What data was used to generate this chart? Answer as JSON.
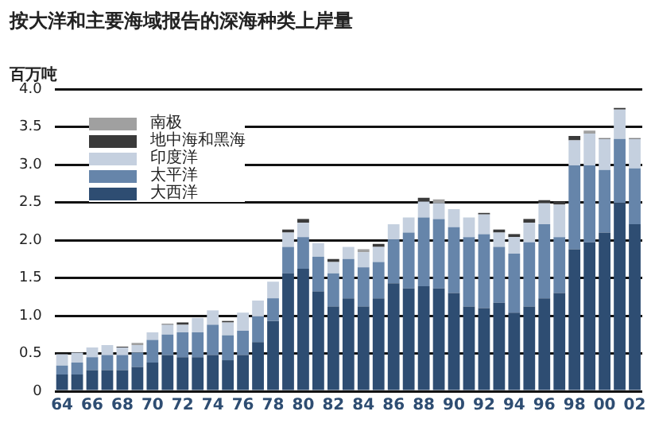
{
  "chart_data": {
    "type": "bar",
    "title": "按大洋和主要海域报告的深海种类上岸量",
    "ylabel": "百万吨",
    "categories": [
      "64",
      null,
      "66",
      null,
      "68",
      null,
      "70",
      null,
      "72",
      null,
      "74",
      null,
      "76",
      null,
      "78",
      null,
      "80",
      null,
      "82",
      null,
      "84",
      null,
      "86",
      null,
      "88",
      null,
      "90",
      null,
      "92",
      null,
      "94",
      null,
      "96",
      null,
      "98",
      null,
      "00",
      null,
      "02"
    ],
    "stacked": true,
    "series": [
      {
        "name": "大西洋",
        "color": "#2e4d72",
        "values": [
          0.22,
          0.22,
          0.28,
          0.28,
          0.28,
          0.32,
          0.38,
          0.48,
          0.45,
          0.45,
          0.48,
          0.41,
          0.48,
          0.65,
          0.93,
          1.56,
          1.62,
          1.32,
          1.12,
          1.23,
          1.12,
          1.23,
          1.43,
          1.36,
          1.39,
          1.36,
          1.3,
          1.12,
          1.1,
          1.17,
          1.04,
          1.12,
          1.23,
          1.3,
          1.88,
          1.97,
          2.1,
          2.49,
          2.21
        ]
      },
      {
        "name": "太平洋",
        "color": "#6685aa",
        "values": [
          0.12,
          0.16,
          0.17,
          0.2,
          0.2,
          0.19,
          0.3,
          0.27,
          0.33,
          0.33,
          0.4,
          0.33,
          0.32,
          0.34,
          0.3,
          0.35,
          0.42,
          0.46,
          0.44,
          0.52,
          0.52,
          0.48,
          0.58,
          0.74,
          0.91,
          0.92,
          0.87,
          0.92,
          0.98,
          0.74,
          0.78,
          0.85,
          0.98,
          0.74,
          1.11,
          1.02,
          0.83,
          0.85,
          0.74
        ]
      },
      {
        "name": "印度洋",
        "color": "#c5d0df",
        "values": [
          0.15,
          0.13,
          0.13,
          0.13,
          0.1,
          0.1,
          0.1,
          0.13,
          0.1,
          0.19,
          0.19,
          0.17,
          0.24,
          0.21,
          0.22,
          0.19,
          0.19,
          0.18,
          0.15,
          0.16,
          0.2,
          0.2,
          0.2,
          0.2,
          0.21,
          0.21,
          0.24,
          0.26,
          0.26,
          0.19,
          0.22,
          0.26,
          0.28,
          0.43,
          0.33,
          0.42,
          0.41,
          0.39,
          0.39
        ]
      },
      {
        "name": "地中海和黑海",
        "color": "#3a3a3a",
        "values": [
          null,
          null,
          null,
          null,
          0.01,
          null,
          null,
          0.01,
          0.03,
          null,
          null,
          0.02,
          null,
          null,
          null,
          0.04,
          0.05,
          null,
          0.04,
          null,
          null,
          0.04,
          null,
          null,
          0.05,
          null,
          null,
          null,
          0.02,
          0.04,
          0.04,
          0.05,
          0.04,
          0.04,
          0.06,
          null,
          0.01,
          0.02,
          0.01
        ]
      },
      {
        "name": "南极",
        "color": "#a0a0a0",
        "values": [
          null,
          null,
          null,
          null,
          null,
          0.03,
          null,
          null,
          null,
          null,
          null,
          null,
          null,
          null,
          null,
          null,
          null,
          null,
          null,
          null,
          0.04,
          null,
          null,
          null,
          null,
          0.05,
          null,
          null,
          null,
          null,
          null,
          null,
          null,
          null,
          null,
          0.04,
          null,
          null,
          null
        ]
      }
    ],
    "ylim": [
      0,
      4
    ],
    "yticks": [
      {
        "value": 0,
        "label": "0"
      },
      {
        "value": 0.5,
        "label": "0.5"
      },
      {
        "value": 1,
        "label": "1.0"
      },
      {
        "value": 1.5,
        "label": "1.5"
      },
      {
        "value": 2,
        "label": "2.0"
      },
      {
        "value": 2.5,
        "label": "2.5"
      },
      {
        "value": 3,
        "label": "3.0"
      },
      {
        "value": 3.5,
        "label": "3.5"
      },
      {
        "value": 4,
        "label": "4.0"
      }
    ],
    "grid": "y",
    "legend": "top left"
  }
}
